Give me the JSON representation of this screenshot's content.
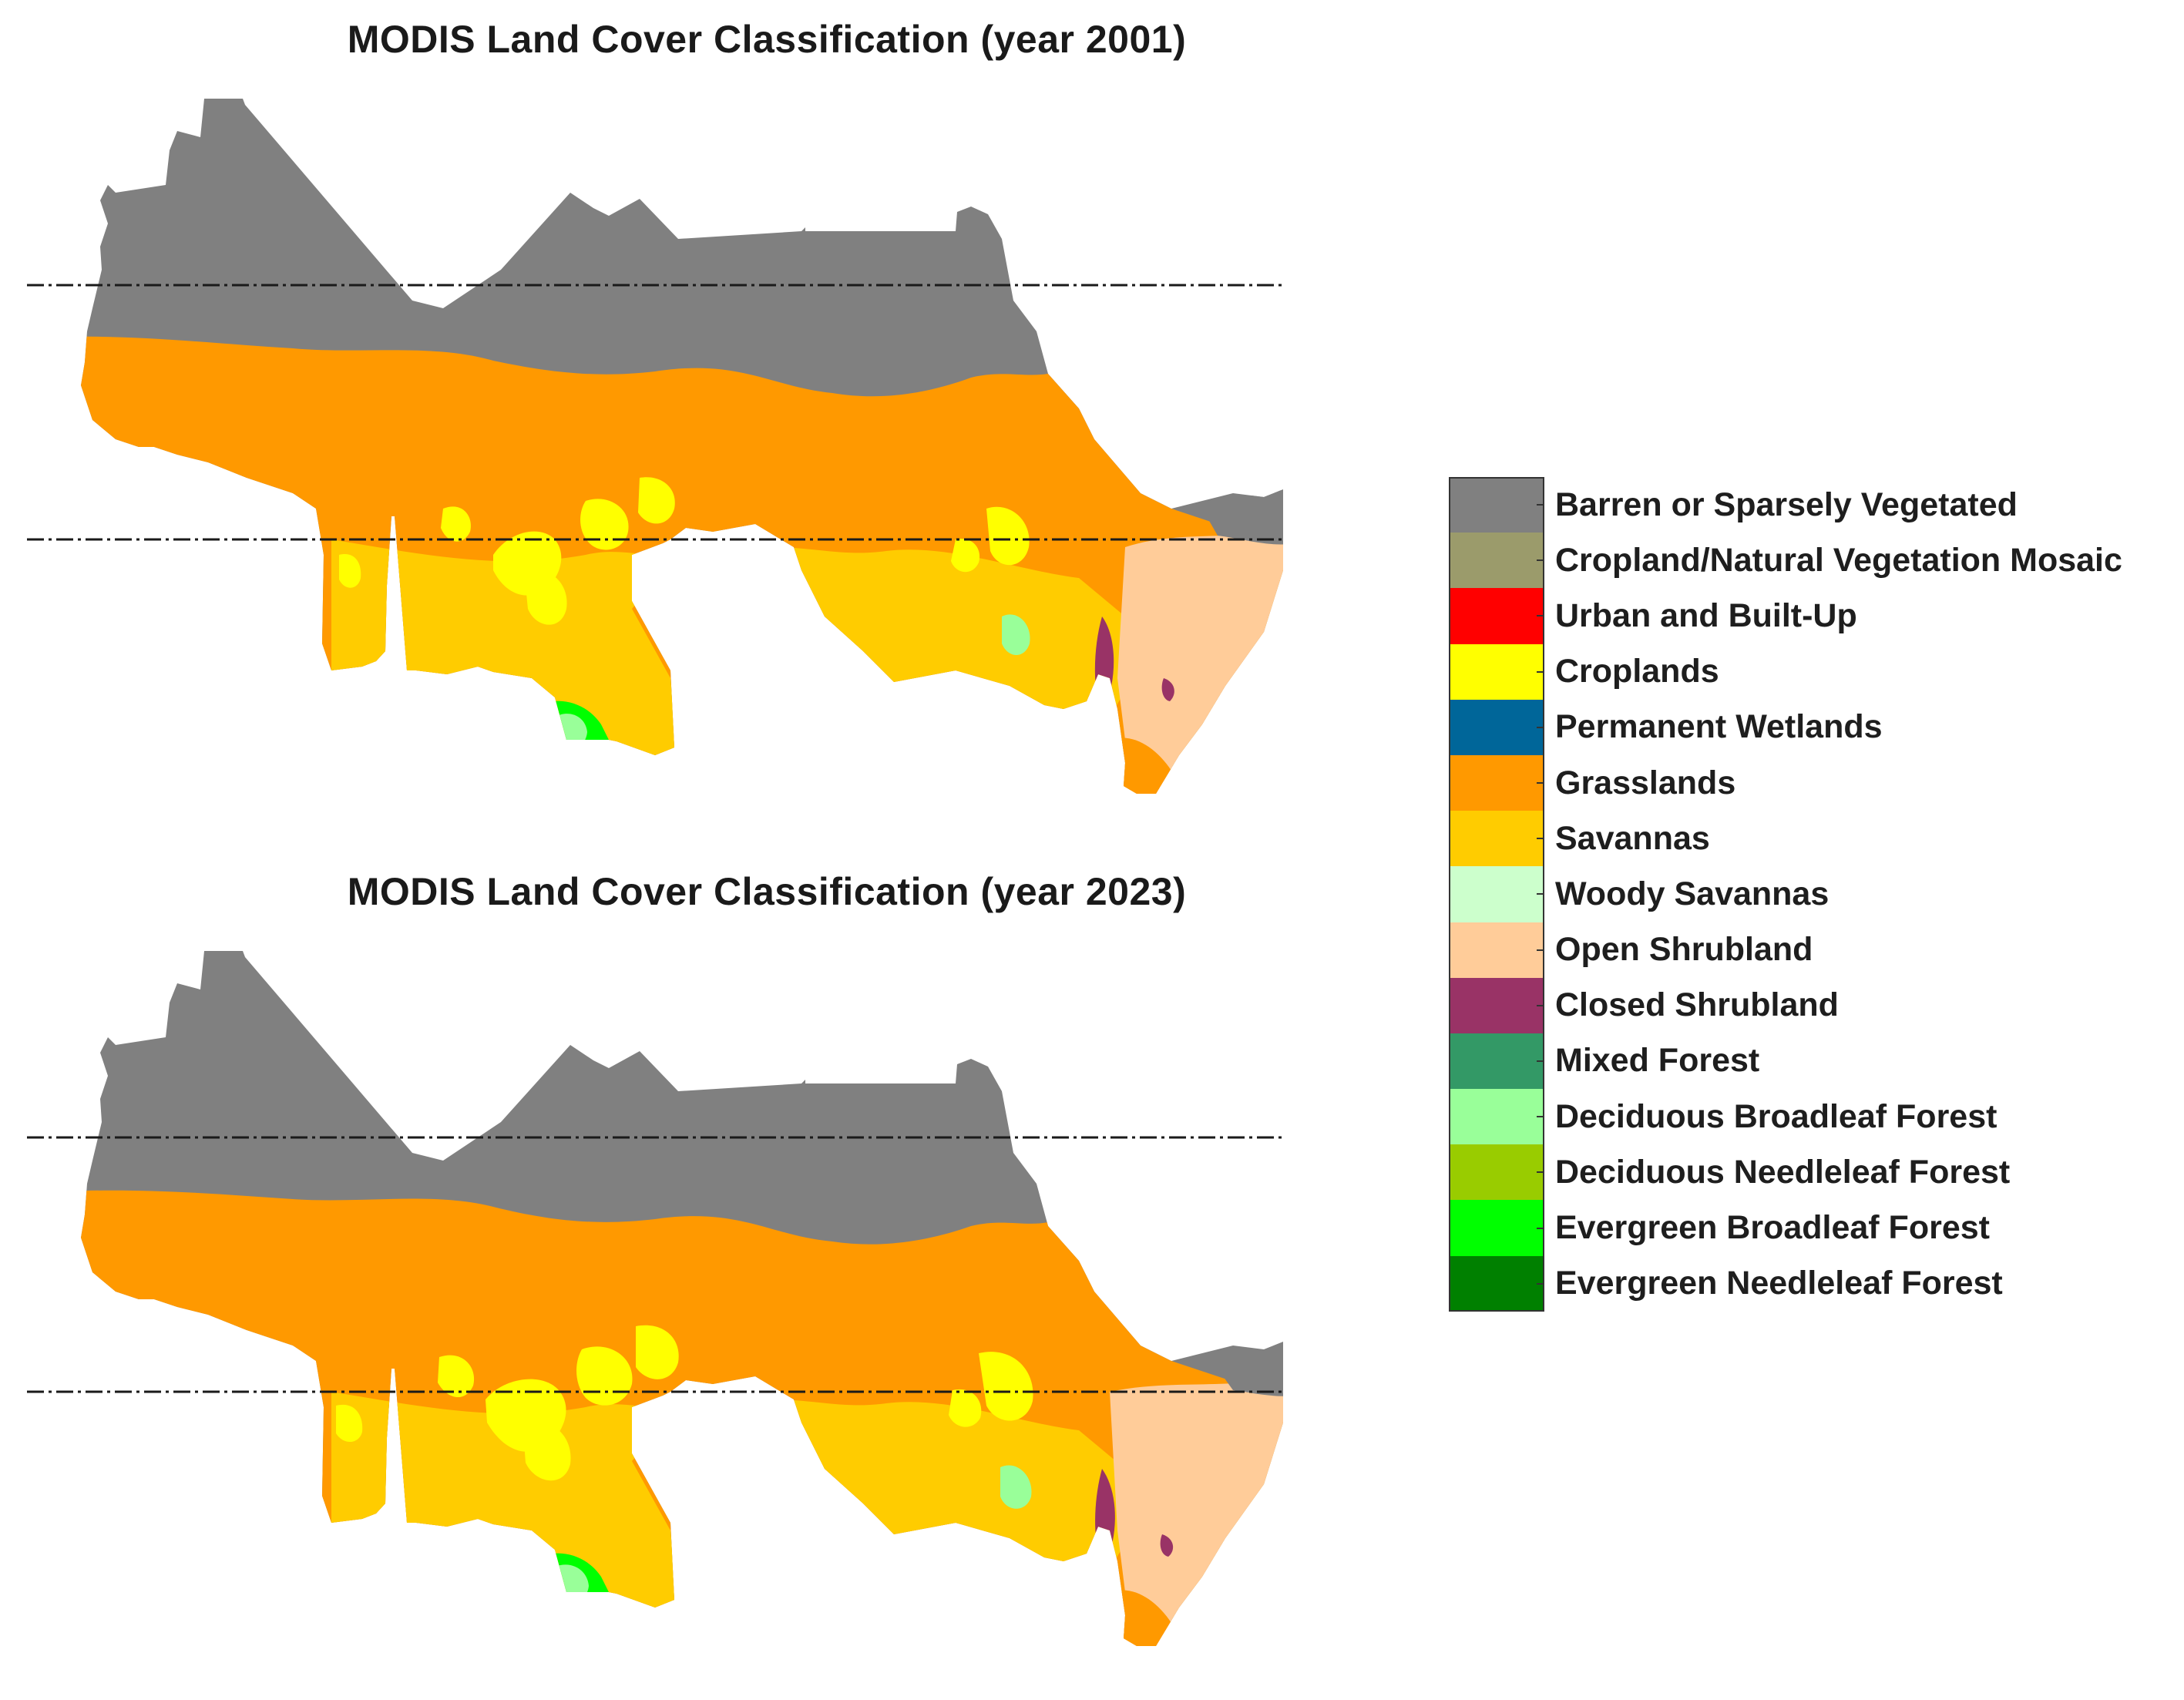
{
  "panels": [
    {
      "title": "MODIS Land Cover Classification (year 2001)"
    },
    {
      "title": "MODIS Land Cover Classification (year 2023)"
    }
  ],
  "legend": [
    {
      "label": "Barren or Sparsely Vegetated",
      "color": "#808080"
    },
    {
      "label": "Cropland/Natural Vegetation Mosaic",
      "color": "#9B9B6B"
    },
    {
      "label": "Urban and Built-Up",
      "color": "#FF0000"
    },
    {
      "label": "Croplands",
      "color": "#FFFF00"
    },
    {
      "label": "Permanent Wetlands",
      "color": "#006699"
    },
    {
      "label": "Grasslands",
      "color": "#FF9900"
    },
    {
      "label": "Savannas",
      "color": "#FFCC00"
    },
    {
      "label": "Woody Savannas",
      "color": "#CCFFCC"
    },
    {
      "label": "Open Shrubland",
      "color": "#FFCC99"
    },
    {
      "label": "Closed Shrubland",
      "color": "#993366"
    },
    {
      "label": "Mixed Forest",
      "color": "#339966"
    },
    {
      "label": "Deciduous Broadleaf Forest",
      "color": "#99FF99"
    },
    {
      "label": "Deciduous Needleleaf Forest",
      "color": "#99CC00"
    },
    {
      "label": "Evergreen Broadleaf Forest",
      "color": "#00FF00"
    },
    {
      "label": "Evergreen Needleleaf Forest",
      "color": "#008000"
    }
  ]
}
